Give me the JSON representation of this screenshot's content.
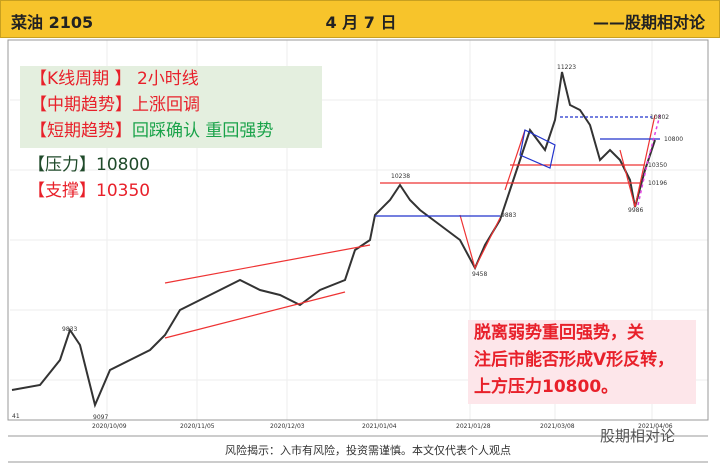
{
  "header": {
    "left": "菜油 2105",
    "center": "4 月 7 日",
    "right": "——股期相对论"
  },
  "info_box": {
    "lines": [
      [
        "【K线周期 】 2小时线"
      ],
      [
        "【中期趋势】上涨回调"
      ],
      [
        "【短期趋势】",
        "回踩确认 重回强势"
      ]
    ]
  },
  "levels": {
    "pressure": "【压力】10800",
    "support": "【支撑】10350"
  },
  "comment": {
    "lines": [
      "脱离弱势重回强势，关",
      "注后市能否形成V形反转，",
      "上方压力10800。"
    ]
  },
  "price_labels": [
    "11223",
    "10802",
    "10800",
    "10350",
    "10196",
    "9986",
    "10238",
    "9883",
    "9458",
    "9833",
    "9097",
    "41"
  ],
  "dates": [
    "2020/10/09",
    "2020/11/05",
    "2020/12/03",
    "2021/01/04",
    "2021/01/28",
    "2021/03/08",
    "2021/04/06"
  ],
  "footer": {
    "risk": "风险揭示：入市有风险，投资需谨慎。本文仅代表个人观点",
    "watermark": "股期相对论"
  }
}
